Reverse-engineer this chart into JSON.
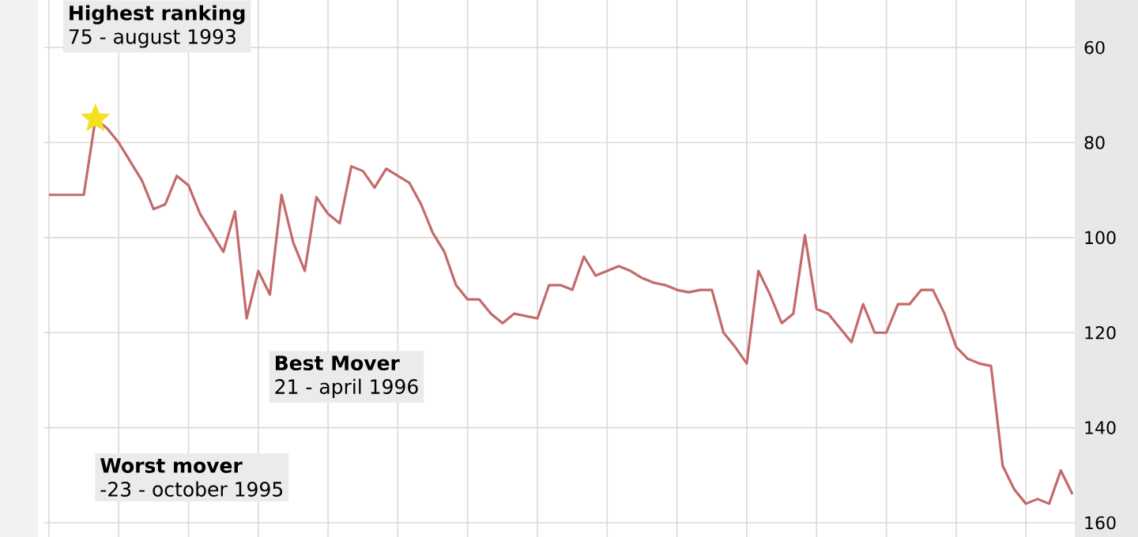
{
  "chart_data": {
    "type": "line",
    "categories": [
      null,
      null,
      null,
      null,
      null,
      null,
      null,
      null,
      null,
      null,
      null,
      null,
      null,
      null,
      null,
      null,
      null,
      null,
      null,
      null,
      null,
      null,
      null,
      null,
      null,
      null,
      null,
      null,
      null,
      null,
      null,
      null,
      null,
      null,
      null,
      null,
      null,
      null,
      null,
      null,
      null,
      null,
      null,
      null,
      null,
      null,
      null,
      null,
      null,
      null,
      null,
      null,
      null,
      null,
      null,
      null,
      null,
      null,
      null,
      null,
      null,
      null,
      null,
      null,
      null,
      null,
      null,
      null,
      null,
      null,
      null,
      null,
      null,
      null,
      null,
      null,
      null,
      null,
      null,
      null,
      null,
      null,
      null,
      null,
      null,
      null,
      null,
      null,
      null
    ],
    "series": [
      {
        "color": "#c46a6a",
        "values": [
          91,
          91,
          91,
          91,
          75,
          77,
          80,
          84,
          88,
          94,
          93,
          87,
          89,
          95,
          99,
          103,
          94.5,
          117,
          107,
          112,
          91,
          101,
          107,
          91.5,
          95,
          97,
          85,
          86,
          89.5,
          85.5,
          87,
          88.5,
          93,
          99,
          103,
          110,
          113,
          113,
          116,
          118,
          116,
          116.5,
          117,
          110,
          110,
          111,
          104,
          108,
          107,
          106,
          107,
          108.5,
          109.5,
          110,
          111,
          111.5,
          111,
          111,
          120,
          123,
          126.5,
          107,
          112,
          118,
          116,
          99.5,
          115,
          116,
          119,
          122,
          114,
          120,
          120,
          114,
          114,
          111,
          111,
          116,
          123,
          125.5,
          126.5,
          127,
          148,
          153,
          156,
          155,
          156,
          149,
          154
        ]
      },
      {
        "type": "scatter",
        "marker": "star",
        "color": "#f2e021",
        "values": [
          null,
          null,
          null,
          null,
          75,
          null,
          null,
          null,
          null,
          null,
          null,
          null,
          null,
          null,
          null,
          null,
          null,
          null,
          null,
          null,
          null,
          null,
          null,
          null,
          null,
          null,
          null,
          null,
          null,
          null,
          null,
          null,
          null,
          null,
          null,
          null,
          null,
          null,
          null,
          null,
          null,
          null,
          null,
          null,
          null,
          null,
          null,
          null,
          null,
          null,
          null,
          null,
          null,
          null,
          null,
          null,
          null,
          null,
          null,
          null,
          null,
          null,
          null,
          null,
          null,
          null,
          null,
          null,
          null,
          null,
          null,
          null,
          null,
          null,
          null,
          null,
          null,
          null,
          null,
          null,
          null,
          null,
          null,
          null,
          null,
          null,
          null,
          null,
          null
        ]
      }
    ],
    "ylim": [
      163,
      50
    ],
    "yticks": [
      60,
      80,
      100,
      120,
      140,
      160
    ],
    "grid": true,
    "tick_labels": "y",
    "annotations": [
      "Highest ranking",
      "75 - august 1993",
      "Best Mover",
      "21 - april 1996",
      "Worst mover",
      "-23 - october 1995"
    ]
  }
}
